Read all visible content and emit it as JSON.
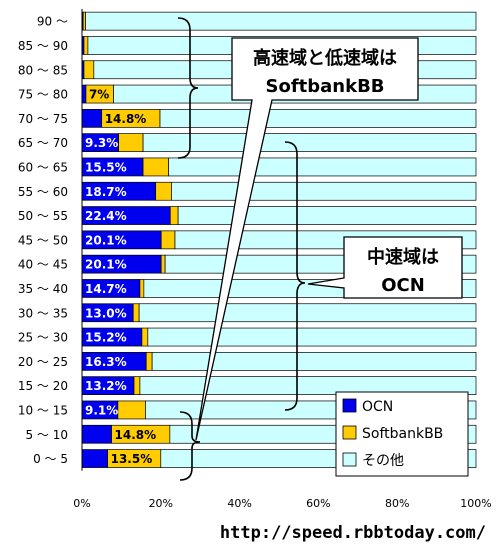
{
  "chart_data": {
    "type": "bar",
    "orientation": "horizontal",
    "stacked": true,
    "stack_normalized": true,
    "categories": [
      "0 ～ 5",
      "5 ～ 10",
      "10 ～ 15",
      "15 ～ 20",
      "20 ～ 25",
      "25 ～ 30",
      "30 ～ 35",
      "35 ～ 40",
      "40 ～ 45",
      "45 ～ 50",
      "50 ～ 55",
      "55 ～ 60",
      "60 ～ 65",
      "65 ～ 70",
      "70 ～ 75",
      "75 ～ 80",
      "80 ～ 85",
      "85 ～ 90",
      "90 ～"
    ],
    "series": [
      {
        "name": "OCN",
        "color": "#0000ee",
        "values": [
          6.5,
          7.5,
          9.1,
          13.2,
          16.3,
          15.2,
          13.0,
          14.7,
          20.1,
          20.1,
          22.4,
          18.7,
          15.5,
          9.3,
          5.0,
          1.0,
          0.5,
          0.5,
          0.3
        ]
      },
      {
        "name": "SoftbankBB",
        "color": "#ffcc00",
        "values": [
          13.5,
          14.8,
          7.0,
          1.5,
          1.5,
          1.5,
          1.5,
          1.0,
          1.0,
          3.5,
          2.0,
          4.0,
          6.5,
          6.2,
          14.8,
          7.0,
          2.5,
          1.0,
          0.6
        ]
      },
      {
        "name": "その他",
        "color": "#ccffff",
        "values": [
          80.0,
          77.7,
          83.9,
          85.3,
          82.2,
          83.3,
          85.5,
          84.3,
          78.9,
          76.4,
          75.6,
          77.3,
          78.0,
          84.5,
          80.2,
          92.0,
          97.0,
          98.5,
          99.1
        ]
      }
    ],
    "data_labels": {
      "OCN": [
        "",
        "",
        "9.1%",
        "13.2%",
        "16.3%",
        "15.2%",
        "13.0%",
        "14.7%",
        "20.1%",
        "20.1%",
        "22.4%",
        "18.7%",
        "15.5%",
        "9.3%",
        "",
        "",
        "",
        "",
        ""
      ],
      "SoftbankBB": [
        "13.5%",
        "14.8%",
        "",
        "",
        "",
        "",
        "",
        "",
        "",
        "",
        "",
        "",
        "",
        "",
        "14.8%",
        "7%",
        "",
        "",
        ""
      ]
    },
    "x_ticks": [
      "0%",
      "20%",
      "40%",
      "60%",
      "80%",
      "100%"
    ],
    "xlim": [
      0,
      100
    ],
    "xlabel": "",
    "ylabel": "",
    "grid": false,
    "legend_position": "bottom-right"
  },
  "annotations": {
    "high_low_callout": {
      "line1": "高速域と低速域は",
      "line2": "SoftbankBB"
    },
    "mid_callout": {
      "line1": "中速域は",
      "line2": "OCN"
    }
  },
  "source_url": "http://speed.rbbtoday.com/"
}
